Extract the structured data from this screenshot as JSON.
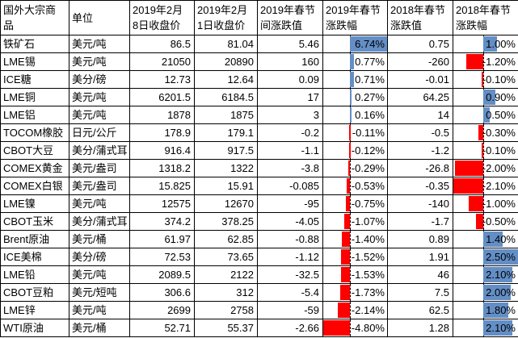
{
  "table": {
    "columns": [
      {
        "key": "name",
        "label": "国外大宗商品"
      },
      {
        "key": "unit",
        "label": "单位"
      },
      {
        "key": "close_feb8",
        "label": "2019年2月8日收盘价"
      },
      {
        "key": "close_feb1",
        "label": "2019年2月1日收盘价"
      },
      {
        "key": "chg_2019",
        "label": "2019年春节间涨跌值"
      },
      {
        "key": "pct_2019",
        "label": "2019年春节涨跌幅"
      },
      {
        "key": "chg_2018",
        "label": "2018年春节涨跌值"
      },
      {
        "key": "pct_2018",
        "label": "2018年春节涨跌幅"
      }
    ],
    "rows": [
      {
        "name": "铁矿石",
        "unit": "美元/吨",
        "close_feb8": "86.5",
        "close_feb1": "81.04",
        "chg_2019": "5.46",
        "pct_2019": {
          "value": 6.74,
          "label": "6.74%"
        },
        "chg_2018": "0.75",
        "pct_2018": {
          "value": 1.0,
          "label": "1.00%"
        }
      },
      {
        "name": "LME锡",
        "unit": "美元/吨",
        "close_feb8": "21050",
        "close_feb1": "20890",
        "chg_2019": "160",
        "pct_2019": {
          "value": 0.77,
          "label": "0.77%"
        },
        "chg_2018": "-260",
        "pct_2018": {
          "value": -1.2,
          "label": "-1.20%"
        }
      },
      {
        "name": "ICE糖",
        "unit": "美分/磅",
        "close_feb8": "12.73",
        "close_feb1": "12.64",
        "chg_2019": "0.09",
        "pct_2019": {
          "value": 0.71,
          "label": "0.71%"
        },
        "chg_2018": "-0.01",
        "pct_2018": {
          "value": -0.1,
          "label": "-0.10%"
        }
      },
      {
        "name": "LME铜",
        "unit": "美元/吨",
        "close_feb8": "6201.5",
        "close_feb1": "6184.5",
        "chg_2019": "17",
        "pct_2019": {
          "value": 0.27,
          "label": "0.27%"
        },
        "chg_2018": "64.25",
        "pct_2018": {
          "value": 0.9,
          "label": "0.90%"
        }
      },
      {
        "name": "LME铝",
        "unit": "美元/吨",
        "close_feb8": "1878",
        "close_feb1": "1875",
        "chg_2019": "3",
        "pct_2019": {
          "value": 0.16,
          "label": "0.16%"
        },
        "chg_2018": "14",
        "pct_2018": {
          "value": 0.5,
          "label": "0.50%"
        }
      },
      {
        "name": "TOCOM橡胶",
        "unit": "日元/公斤",
        "close_feb8": "178.9",
        "close_feb1": "179.1",
        "chg_2019": "-0.2",
        "pct_2019": {
          "value": -0.11,
          "label": "-0.11%"
        },
        "chg_2018": "-0.5",
        "pct_2018": {
          "value": -0.3,
          "label": "-0.30%"
        }
      },
      {
        "name": "CBOT大豆",
        "unit": "美分/蒲式耳",
        "close_feb8": "916.4",
        "close_feb1": "917.5",
        "chg_2019": "-1.1",
        "pct_2019": {
          "value": -0.12,
          "label": "-0.12%"
        },
        "chg_2018": "-1.2",
        "pct_2018": {
          "value": -0.1,
          "label": "-0.10%"
        }
      },
      {
        "name": "COMEX黄金",
        "unit": "美元/盎司",
        "close_feb8": "1318.2",
        "close_feb1": "1322",
        "chg_2019": "-3.8",
        "pct_2019": {
          "value": -0.29,
          "label": "-0.29%"
        },
        "chg_2018": "-26.8",
        "pct_2018": {
          "value": -2.0,
          "label": "-2.00%"
        }
      },
      {
        "name": "COMEX白银",
        "unit": "美元/盎司",
        "close_feb8": "15.825",
        "close_feb1": "15.91",
        "chg_2019": "-0.085",
        "pct_2019": {
          "value": -0.53,
          "label": "-0.53%"
        },
        "chg_2018": "-0.35",
        "pct_2018": {
          "value": -2.1,
          "label": "-2.10%"
        }
      },
      {
        "name": "LME镍",
        "unit": "美元/吨",
        "close_feb8": "12575",
        "close_feb1": "12670",
        "chg_2019": "-95",
        "pct_2019": {
          "value": -0.75,
          "label": "-0.75%"
        },
        "chg_2018": "-140",
        "pct_2018": {
          "value": -1.0,
          "label": "-1.00%"
        }
      },
      {
        "name": "CBOT玉米",
        "unit": "美分/蒲式耳",
        "close_feb8": "374.2",
        "close_feb1": "378.25",
        "chg_2019": "-4.05",
        "pct_2019": {
          "value": -1.07,
          "label": "-1.07%"
        },
        "chg_2018": "-1.7",
        "pct_2018": {
          "value": -0.5,
          "label": "-0.50%"
        }
      },
      {
        "name": "Brent原油",
        "unit": "美元/桶",
        "close_feb8": "61.97",
        "close_feb1": "62.85",
        "chg_2019": "-0.88",
        "pct_2019": {
          "value": -1.4,
          "label": "-1.40%"
        },
        "chg_2018": "0.89",
        "pct_2018": {
          "value": 1.4,
          "label": "1.40%"
        }
      },
      {
        "name": "ICE美棉",
        "unit": "美分/磅",
        "close_feb8": "72.53",
        "close_feb1": "73.65",
        "chg_2019": "-1.12",
        "pct_2019": {
          "value": -1.52,
          "label": "-1.52%"
        },
        "chg_2018": "1.91",
        "pct_2018": {
          "value": 2.5,
          "label": "2.50%"
        }
      },
      {
        "name": "LME铅",
        "unit": "美元/吨",
        "close_feb8": "2089.5",
        "close_feb1": "2122",
        "chg_2019": "-32.5",
        "pct_2019": {
          "value": -1.53,
          "label": "-1.53%"
        },
        "chg_2018": "46",
        "pct_2018": {
          "value": 2.1,
          "label": "2.10%"
        }
      },
      {
        "name": "CBOT豆粕",
        "unit": "美元/短吨",
        "close_feb8": "306.6",
        "close_feb1": "312",
        "chg_2019": "-5.4",
        "pct_2019": {
          "value": -1.73,
          "label": "-1.73%"
        },
        "chg_2018": "7.5",
        "pct_2018": {
          "value": 2.0,
          "label": "2.00%"
        }
      },
      {
        "name": "LME锌",
        "unit": "美元/吨",
        "close_feb8": "2699",
        "close_feb1": "2758",
        "chg_2019": "-59",
        "pct_2019": {
          "value": -2.14,
          "label": "-2.14%"
        },
        "chg_2018": "62.5",
        "pct_2018": {
          "value": 1.8,
          "label": "1.80%"
        }
      },
      {
        "name": "WTI原油",
        "unit": "美元/桶",
        "close_feb8": "52.71",
        "close_feb1": "55.37",
        "chg_2019": "-2.66",
        "pct_2019": {
          "value": -4.8,
          "label": "-4.80%"
        },
        "chg_2018": "1.28",
        "pct_2018": {
          "value": 2.1,
          "label": "2.10%"
        }
      }
    ]
  },
  "databars": {
    "pct_2019": {
      "min": -4.8,
      "max": 6.74,
      "positive_color": "#638EC6",
      "negative_color": "#FF0000",
      "axis_color": "#000000"
    },
    "pct_2018": {
      "min": -2.1,
      "max": 2.5,
      "positive_color": "#638EC6",
      "negative_color": "#FF0000",
      "axis_color": "#000000"
    }
  },
  "chart_data": {
    "type": "table",
    "title": "",
    "columns": [
      "国外大宗商品",
      "单位",
      "2019年2月8日收盘价",
      "2019年2月1日收盘价",
      "2019年春节间涨跌值",
      "2019年春节涨跌幅",
      "2018年春节涨跌值",
      "2018年春节涨跌幅"
    ],
    "rows": [
      [
        "铁矿石",
        "美元/吨",
        86.5,
        81.04,
        5.46,
        "6.74%",
        0.75,
        "1.00%"
      ],
      [
        "LME锡",
        "美元/吨",
        21050,
        20890,
        160,
        "0.77%",
        -260,
        "-1.20%"
      ],
      [
        "ICE糖",
        "美分/磅",
        12.73,
        12.64,
        0.09,
        "0.71%",
        -0.01,
        "-0.10%"
      ],
      [
        "LME铜",
        "美元/吨",
        6201.5,
        6184.5,
        17,
        "0.27%",
        64.25,
        "0.90%"
      ],
      [
        "LME铝",
        "美元/吨",
        1878,
        1875,
        3,
        "0.16%",
        14,
        "0.50%"
      ],
      [
        "TOCOM橡胶",
        "日元/公斤",
        178.9,
        179.1,
        -0.2,
        "-0.11%",
        -0.5,
        "-0.30%"
      ],
      [
        "CBOT大豆",
        "美分/蒲式耳",
        916.4,
        917.5,
        -1.1,
        "-0.12%",
        -1.2,
        "-0.10%"
      ],
      [
        "COMEX黄金",
        "美元/盎司",
        1318.2,
        1322,
        -3.8,
        "-0.29%",
        -26.8,
        "-2.00%"
      ],
      [
        "COMEX白银",
        "美元/盎司",
        15.825,
        15.91,
        -0.085,
        "-0.53%",
        -0.35,
        "-2.10%"
      ],
      [
        "LME镍",
        "美元/吨",
        12575,
        12670,
        -95,
        "-0.75%",
        -140,
        "-1.00%"
      ],
      [
        "CBOT玉米",
        "美分/蒲式耳",
        374.2,
        378.25,
        -4.05,
        "-1.07%",
        -1.7,
        "-0.50%"
      ],
      [
        "Brent原油",
        "美元/桶",
        61.97,
        62.85,
        -0.88,
        "-1.40%",
        0.89,
        "1.40%"
      ],
      [
        "ICE美棉",
        "美分/磅",
        72.53,
        73.65,
        -1.12,
        "-1.52%",
        1.91,
        "2.50%"
      ],
      [
        "LME铅",
        "美元/吨",
        2089.5,
        2122,
        -32.5,
        "-1.53%",
        46,
        "2.10%"
      ],
      [
        "CBOT豆粕",
        "美元/短吨",
        306.6,
        312,
        -5.4,
        "-1.73%",
        7.5,
        "2.00%"
      ],
      [
        "LME锌",
        "美元/吨",
        2699,
        2758,
        -59,
        "-2.14%",
        62.5,
        "1.80%"
      ],
      [
        "WTI原油",
        "美元/桶",
        52.71,
        55.37,
        -2.66,
        "-4.80%",
        1.28,
        "2.10%"
      ]
    ],
    "databar_columns": {
      "2019年春节涨跌幅": {
        "min": -4.8,
        "max": 6.74
      },
      "2018年春节涨跌幅": {
        "min": -2.1,
        "max": 2.5
      }
    },
    "positive_bar_color": "#638EC6",
    "negative_bar_color": "#FF0000",
    "grid": true,
    "legend": false
  }
}
